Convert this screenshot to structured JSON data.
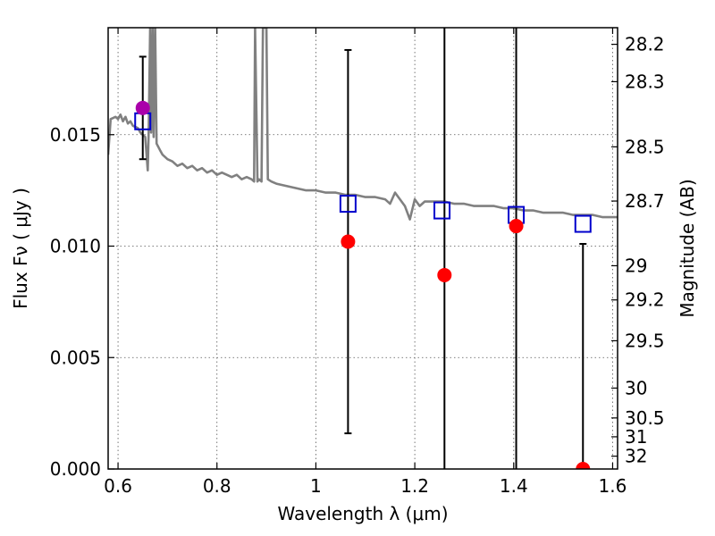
{
  "chart_data": {
    "type": "scatter",
    "title": "",
    "xlabel": "Wavelength  λ (μm)",
    "ylabel": "Flux  Fν  ( μJy )",
    "ylabel2": "Magnitude (AB)",
    "xlim": [
      0.58,
      1.61
    ],
    "ylim": [
      0.0,
      0.0198
    ],
    "grid": true,
    "x_ticks": [
      {
        "value": 0.6,
        "label": "0.6"
      },
      {
        "value": 0.8,
        "label": "0.8"
      },
      {
        "value": 1.0,
        "label": "1"
      },
      {
        "value": 1.2,
        "label": "1.2"
      },
      {
        "value": 1.4,
        "label": "1.4"
      },
      {
        "value": 1.6,
        "label": "1.6"
      }
    ],
    "y_ticks": [
      {
        "value": 0.0,
        "label": "0.000"
      },
      {
        "value": 0.005,
        "label": "0.005"
      },
      {
        "value": 0.01,
        "label": "0.010"
      },
      {
        "value": 0.015,
        "label": "0.015"
      }
    ],
    "mag_ticks": [
      {
        "mag": 28.2,
        "label": "28.2"
      },
      {
        "mag": 28.3,
        "label": "28.3"
      },
      {
        "mag": 28.5,
        "label": "28.5"
      },
      {
        "mag": 28.7,
        "label": "28.7"
      },
      {
        "mag": 29.0,
        "label": "29"
      },
      {
        "mag": 29.2,
        "label": "29.2"
      },
      {
        "mag": 29.5,
        "label": "29.5"
      },
      {
        "mag": 30.0,
        "label": "30"
      },
      {
        "mag": 30.5,
        "label": "30.5"
      },
      {
        "mag": 31.0,
        "label": "31"
      },
      {
        "mag": 32.0,
        "label": "32"
      }
    ],
    "model_spectrum": {
      "color": "#808080",
      "points": [
        [
          0.58,
          0.0141
        ],
        [
          0.585,
          0.0157
        ],
        [
          0.595,
          0.0158
        ],
        [
          0.6,
          0.0157
        ],
        [
          0.605,
          0.0159
        ],
        [
          0.61,
          0.0156
        ],
        [
          0.615,
          0.0158
        ],
        [
          0.62,
          0.0155
        ],
        [
          0.625,
          0.0156
        ],
        [
          0.63,
          0.0154
        ],
        [
          0.64,
          0.0153
        ],
        [
          0.645,
          0.0151
        ],
        [
          0.65,
          0.015
        ],
        [
          0.655,
          0.0149
        ],
        [
          0.66,
          0.0134
        ],
        [
          0.662,
          0.0152
        ],
        [
          0.665,
          0.0198
        ],
        [
          0.667,
          0.0151
        ],
        [
          0.67,
          0.0198
        ],
        [
          0.672,
          0.0149
        ],
        [
          0.675,
          0.0198
        ],
        [
          0.678,
          0.0146
        ],
        [
          0.685,
          0.0143
        ],
        [
          0.69,
          0.0141
        ],
        [
          0.7,
          0.0139
        ],
        [
          0.71,
          0.0138
        ],
        [
          0.72,
          0.0136
        ],
        [
          0.73,
          0.0137
        ],
        [
          0.74,
          0.0135
        ],
        [
          0.75,
          0.0136
        ],
        [
          0.76,
          0.0134
        ],
        [
          0.77,
          0.0135
        ],
        [
          0.78,
          0.0133
        ],
        [
          0.79,
          0.0134
        ],
        [
          0.8,
          0.0132
        ],
        [
          0.81,
          0.0133
        ],
        [
          0.82,
          0.0132
        ],
        [
          0.83,
          0.0131
        ],
        [
          0.84,
          0.0132
        ],
        [
          0.85,
          0.013
        ],
        [
          0.86,
          0.0131
        ],
        [
          0.87,
          0.013
        ],
        [
          0.875,
          0.0129
        ],
        [
          0.877,
          0.0198
        ],
        [
          0.882,
          0.0129
        ],
        [
          0.885,
          0.013
        ],
        [
          0.89,
          0.0129
        ],
        [
          0.893,
          0.0198
        ],
        [
          0.9,
          0.0198
        ],
        [
          0.903,
          0.013
        ],
        [
          0.91,
          0.0129
        ],
        [
          0.92,
          0.0128
        ],
        [
          0.94,
          0.0127
        ],
        [
          0.96,
          0.0126
        ],
        [
          0.98,
          0.0125
        ],
        [
          1.0,
          0.0125
        ],
        [
          1.02,
          0.0124
        ],
        [
          1.04,
          0.0124
        ],
        [
          1.06,
          0.0123
        ],
        [
          1.08,
          0.0123
        ],
        [
          1.1,
          0.0122
        ],
        [
          1.12,
          0.0122
        ],
        [
          1.14,
          0.0121
        ],
        [
          1.15,
          0.0119
        ],
        [
          1.16,
          0.0124
        ],
        [
          1.17,
          0.0121
        ],
        [
          1.18,
          0.0118
        ],
        [
          1.19,
          0.0112
        ],
        [
          1.2,
          0.0121
        ],
        [
          1.21,
          0.0118
        ],
        [
          1.22,
          0.012
        ],
        [
          1.24,
          0.012
        ],
        [
          1.26,
          0.012
        ],
        [
          1.28,
          0.0119
        ],
        [
          1.3,
          0.0119
        ],
        [
          1.32,
          0.0118
        ],
        [
          1.34,
          0.0118
        ],
        [
          1.36,
          0.0118
        ],
        [
          1.38,
          0.0117
        ],
        [
          1.4,
          0.0117
        ],
        [
          1.42,
          0.0116
        ],
        [
          1.44,
          0.0116
        ],
        [
          1.46,
          0.0115
        ],
        [
          1.48,
          0.0115
        ],
        [
          1.5,
          0.0115
        ],
        [
          1.52,
          0.0114
        ],
        [
          1.54,
          0.0114
        ],
        [
          1.56,
          0.0114
        ],
        [
          1.58,
          0.0113
        ],
        [
          1.6,
          0.0113
        ],
        [
          1.61,
          0.0113
        ]
      ]
    },
    "model_photometry": {
      "color": "#0000cc",
      "marker": "open-square",
      "points": [
        [
          0.65,
          0.0156
        ],
        [
          1.065,
          0.0119
        ],
        [
          1.255,
          0.0116
        ],
        [
          1.405,
          0.0114
        ],
        [
          1.54,
          0.011
        ]
      ]
    },
    "observed": {
      "color": "#ff0000",
      "marker": "filled-circle",
      "points": [
        {
          "x": 1.065,
          "y": 0.0102,
          "ylo": 0.0016,
          "yhi": 0.0188
        },
        {
          "x": 1.26,
          "y": 0.0087,
          "ylo": 0.0,
          "yhi": 0.0198
        },
        {
          "x": 1.405,
          "y": 0.0109,
          "ylo": 0.0,
          "yhi": 0.0198
        },
        {
          "x": 1.54,
          "y": 0.0,
          "ylo": 0.0,
          "yhi": 0.0101
        }
      ]
    },
    "observed_highlight": {
      "color": "#aa00aa",
      "marker": "filled-circle",
      "points": [
        {
          "x": 0.65,
          "y": 0.0162,
          "ylo": 0.0139,
          "yhi": 0.0185
        }
      ]
    }
  }
}
